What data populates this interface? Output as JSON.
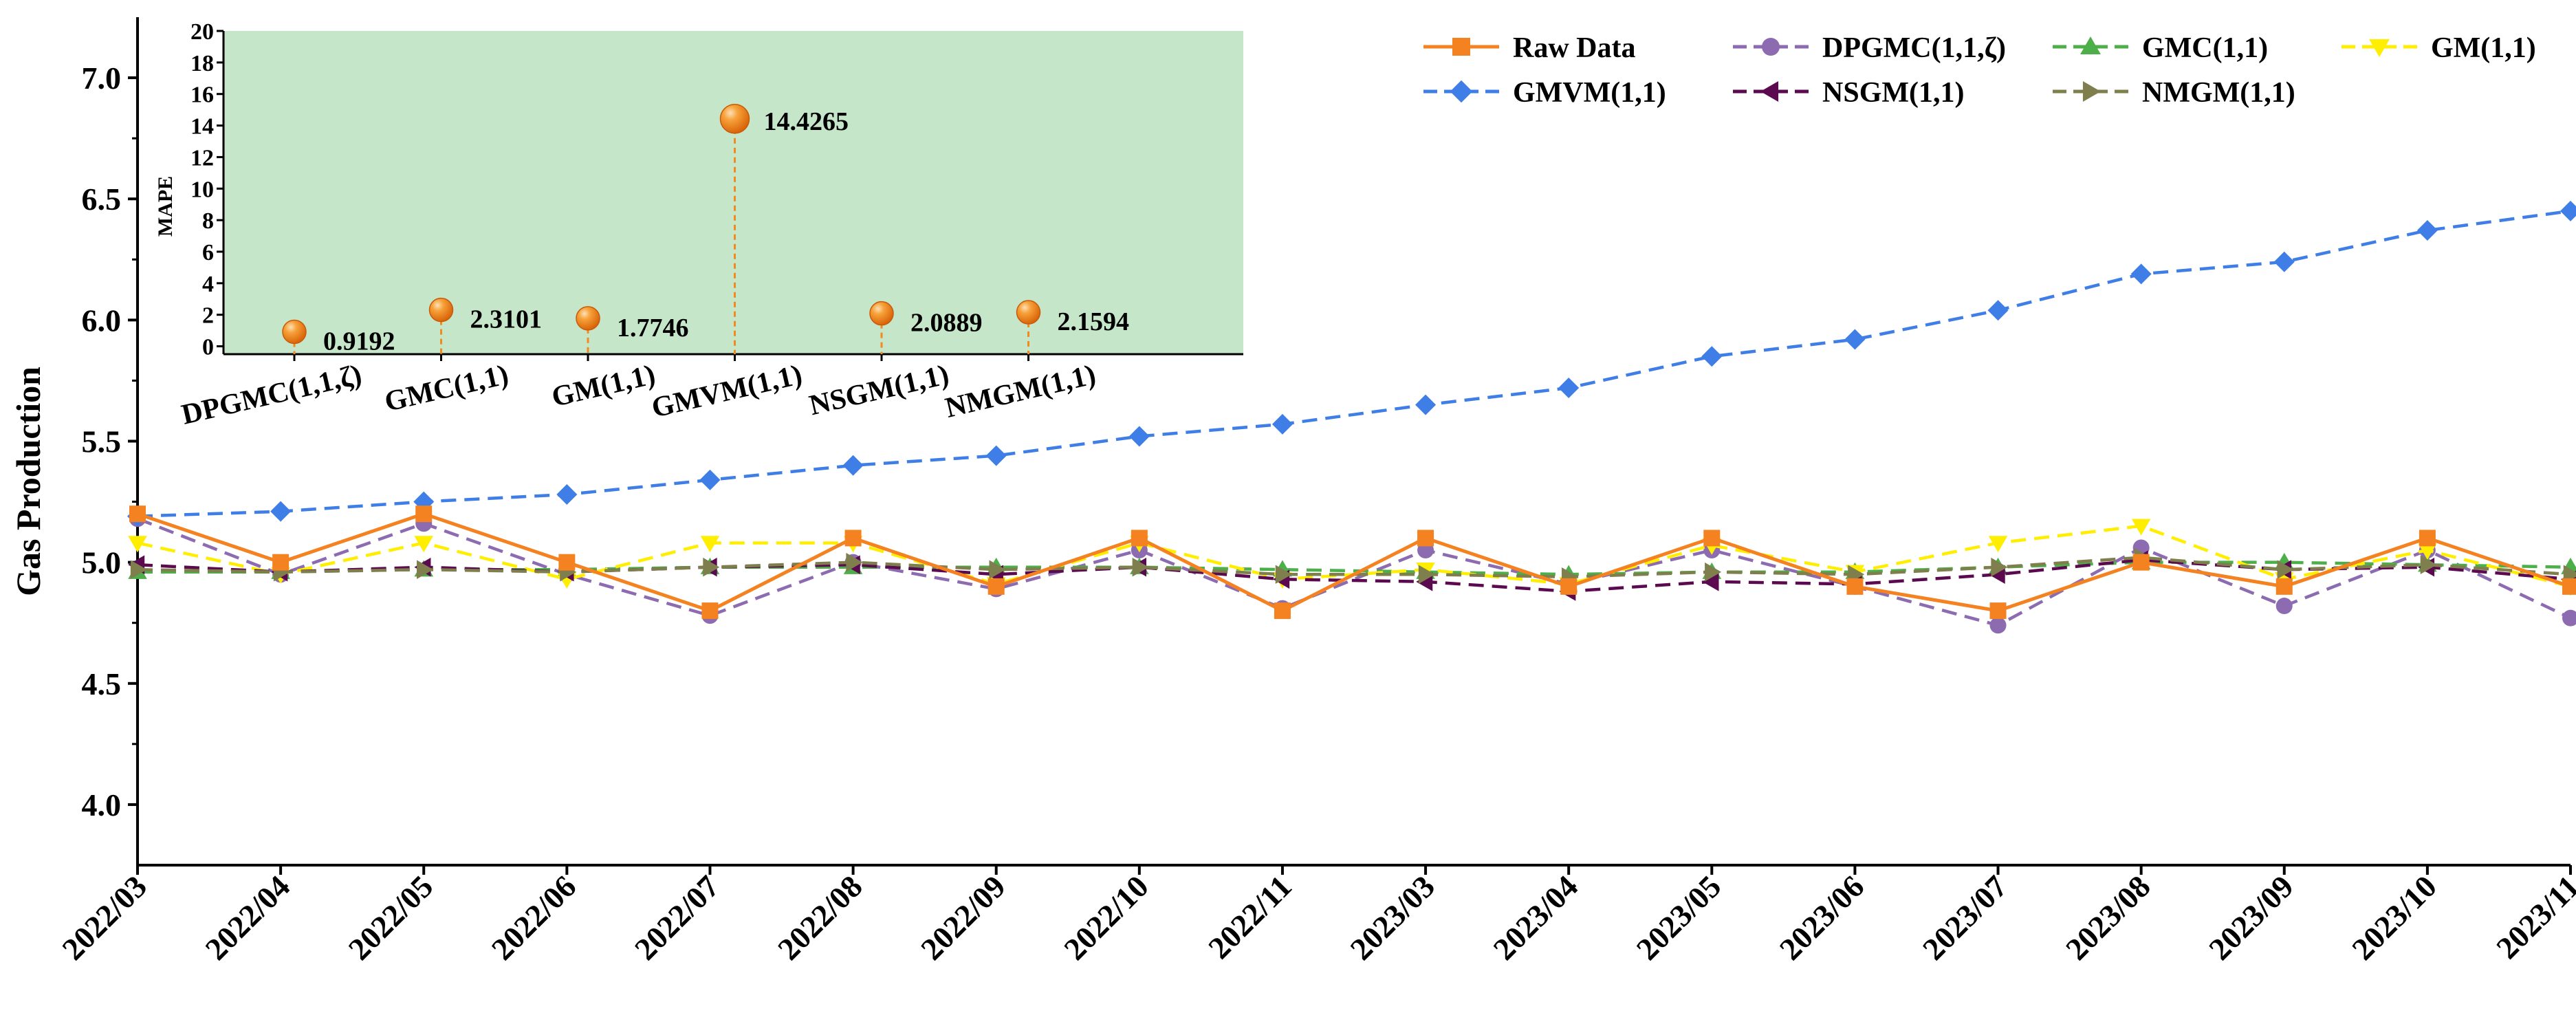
{
  "chart_data": [
    {
      "type": "line",
      "title": "",
      "xlabel": "",
      "ylabel": "Gas Production",
      "ylim": [
        3.75,
        7.25
      ],
      "yticks": [
        4.0,
        4.5,
        5.0,
        5.5,
        6.0,
        6.5,
        7.0
      ],
      "ytick_labels": [
        "4.0",
        "4.5",
        "5.0",
        "5.5",
        "6.0",
        "6.5",
        "7.0"
      ],
      "categories": [
        "2022/03",
        "2022/04",
        "2022/05",
        "2022/06",
        "2022/07",
        "2022/08",
        "2022/09",
        "2022/10",
        "2022/11",
        "2023/03",
        "2023/04",
        "2023/05",
        "2023/06",
        "2023/07",
        "2023/08",
        "2023/09",
        "2023/10",
        "2023/11"
      ],
      "legend_position": "top-right",
      "series": [
        {
          "name": "Raw Data",
          "color": "#f58220",
          "marker": "square",
          "dash": "solid",
          "values": [
            5.2,
            5.0,
            5.2,
            5.0,
            4.8,
            5.1,
            4.9,
            5.1,
            4.8,
            5.1,
            4.9,
            5.1,
            4.9,
            4.8,
            5.0,
            4.9,
            5.1,
            4.9
          ]
        },
        {
          "name": "DPGMC(1,1,ζ)",
          "color": "#8c6bb1",
          "marker": "circle",
          "dash": "dashed",
          "values": [
            5.18,
            4.95,
            5.16,
            4.95,
            4.78,
            5.0,
            4.89,
            5.05,
            4.81,
            5.05,
            4.91,
            5.05,
            4.9,
            4.74,
            5.06,
            4.82,
            5.05,
            4.77
          ]
        },
        {
          "name": "GMC(1,1)",
          "color": "#4daf4a",
          "marker": "triangle-up",
          "dash": "dashed",
          "values": [
            4.96,
            4.96,
            4.97,
            4.97,
            4.98,
            4.98,
            4.98,
            4.98,
            4.97,
            4.96,
            4.95,
            4.96,
            4.96,
            4.98,
            5.0,
            5.0,
            4.99,
            4.98
          ]
        },
        {
          "name": "GM(1,1)",
          "color": "#ffee00",
          "marker": "triangle-down",
          "dash": "dashed",
          "values": [
            5.08,
            4.95,
            5.08,
            4.93,
            5.08,
            5.08,
            4.91,
            5.08,
            4.93,
            4.97,
            4.91,
            5.07,
            4.96,
            5.08,
            5.15,
            4.93,
            5.05,
            4.9
          ]
        },
        {
          "name": "GMVM(1,1)",
          "color": "#3e7ee6",
          "marker": "diamond",
          "dash": "dashed",
          "values": [
            5.19,
            5.21,
            5.25,
            5.28,
            5.34,
            5.4,
            5.44,
            5.52,
            5.57,
            5.65,
            5.72,
            5.85,
            5.92,
            6.04,
            6.19,
            6.24,
            6.37,
            6.45
          ]
        },
        {
          "name": "NSGM(1,1)",
          "color": "#5b0a4f",
          "marker": "triangle-left",
          "dash": "dashed",
          "values": [
            4.99,
            4.96,
            4.98,
            4.96,
            4.98,
            4.99,
            4.95,
            4.98,
            4.93,
            4.92,
            4.88,
            4.92,
            4.91,
            4.95,
            5.01,
            4.97,
            4.98,
            4.93
          ]
        },
        {
          "name": "NMGM(1,1)",
          "color": "#7f7f4d",
          "marker": "triangle-right",
          "dash": "dashed",
          "values": [
            4.97,
            4.96,
            4.97,
            4.96,
            4.98,
            5.0,
            4.97,
            4.98,
            4.95,
            4.95,
            4.94,
            4.96,
            4.95,
            4.98,
            5.02,
            4.97,
            4.99,
            4.95
          ]
        }
      ]
    },
    {
      "type": "scatter",
      "title": "",
      "xlabel": "",
      "ylabel": "MAPE",
      "ylim": [
        -0.5,
        20
      ],
      "yticks": [
        0,
        2,
        4,
        6,
        8,
        10,
        12,
        14,
        16,
        18,
        20
      ],
      "ytick_labels": [
        "0",
        "2",
        "4",
        "6",
        "8",
        "10",
        "12",
        "14",
        "16",
        "18",
        "20"
      ],
      "background": "#c5e6c9",
      "categories": [
        "DPGMC(1,1,ζ)",
        "GMC(1,1)",
        "GM(1,1)",
        "GMVM(1,1)",
        "NSGM(1,1)",
        "NMGM(1,1)"
      ],
      "values": [
        0.9192,
        2.3101,
        1.7746,
        14.4265,
        2.0889,
        2.1594
      ],
      "value_labels": [
        "0.9192",
        "2.3101",
        "1.7746",
        "14.4265",
        "2.0889",
        "2.1594"
      ],
      "marker_color": "#f28a1e"
    }
  ]
}
